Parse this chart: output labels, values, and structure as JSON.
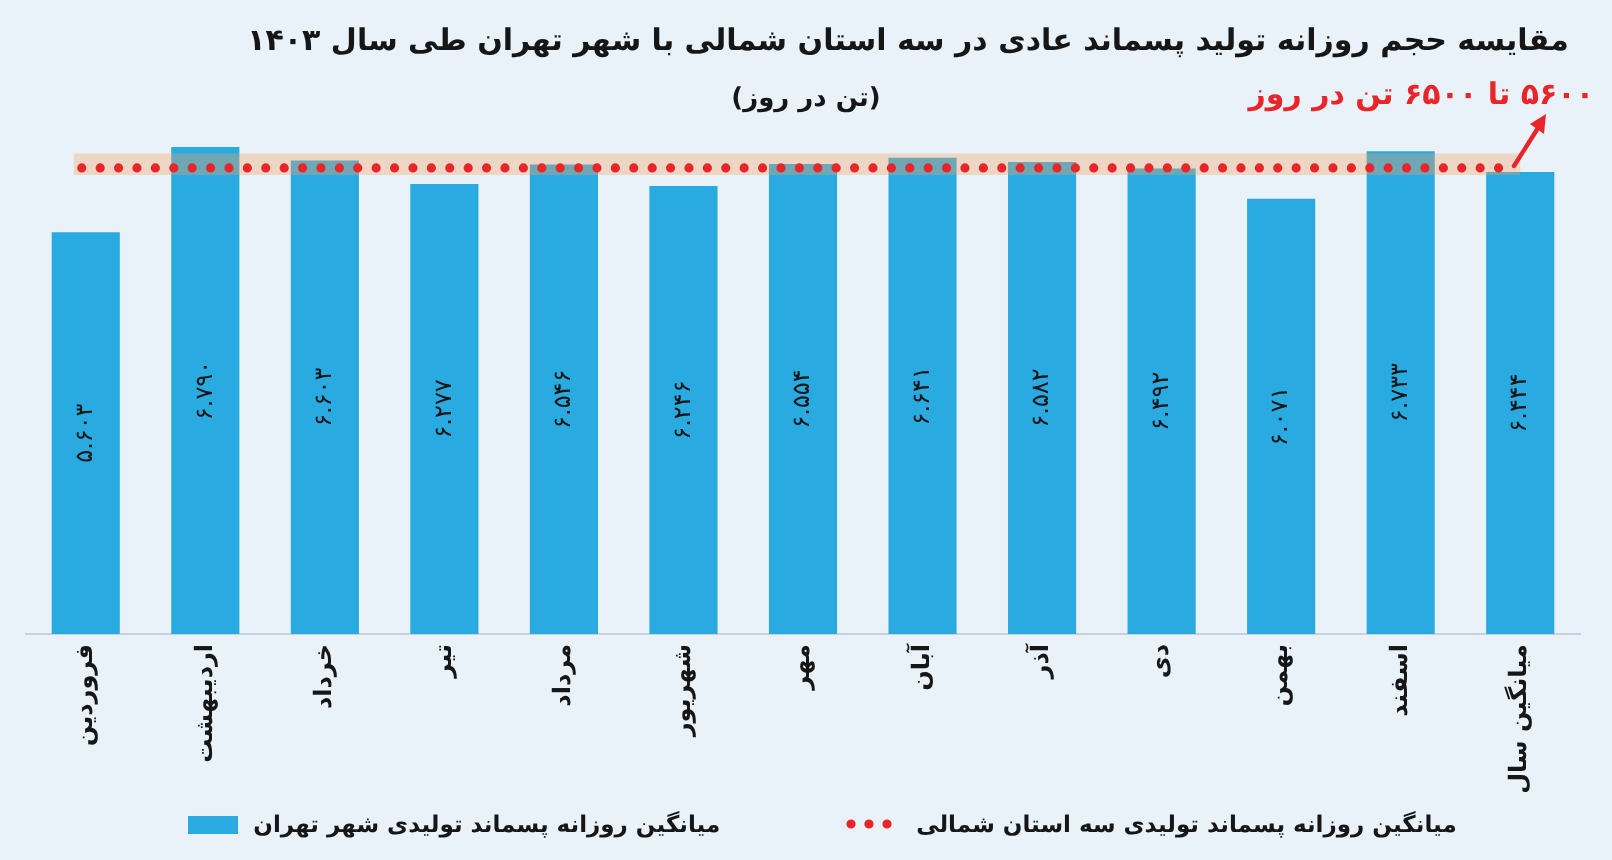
{
  "chart_data": {
    "type": "bar",
    "title": "مقایسه حجم روزانه تولید پسماند عادی در سه استان شمالی با شهر تهران طی سال ۱۴۰۳",
    "subtitle": "(تن در روز)",
    "categories": [
      "فروردین",
      "اردیبهشت",
      "خرداد",
      "تیر",
      "مرداد",
      "شهریور",
      "مهر",
      "آبان",
      "آذر",
      "دی",
      "بهمن",
      "اسفند",
      "میانگین سال"
    ],
    "series": [
      {
        "name": "میانگین روزانه پسماند تولیدی شهر تهران",
        "color": "#29abe2",
        "values": [
          5.603,
          6.79,
          6.603,
          6.277,
          6.546,
          6.246,
          6.554,
          6.641,
          6.582,
          6.492,
          6.071,
          6.733,
          6.444
        ],
        "value_labels": [
          "۵.۶۰۳",
          "۶.۷۹۰",
          "۶.۶۰۳",
          "۶.۲۷۷",
          "۶.۵۴۶",
          "۶.۲۴۶",
          "۶.۵۵۴",
          "۶.۶۴۱",
          "۶.۵۸۲",
          "۶.۴۹۲",
          "۶.۰۷۱",
          "۶.۷۳۳",
          "۶.۴۴۴"
        ]
      }
    ],
    "ref_lines": [
      {
        "axis": "y",
        "value": 6.5,
        "label": "میانگین روزانه پسماند تولیدی سه استان شمالی",
        "color": "#e8262a",
        "line_style": "dotted"
      }
    ],
    "bands": [
      {
        "axis": "y",
        "from": 6.4,
        "to": 6.7,
        "color": "#f5a05f"
      }
    ],
    "annotations": [
      "۵۶۰۰ تا ۶۵۰۰ تن در روز"
    ],
    "tick_labels": "x",
    "legend": "bottom"
  }
}
